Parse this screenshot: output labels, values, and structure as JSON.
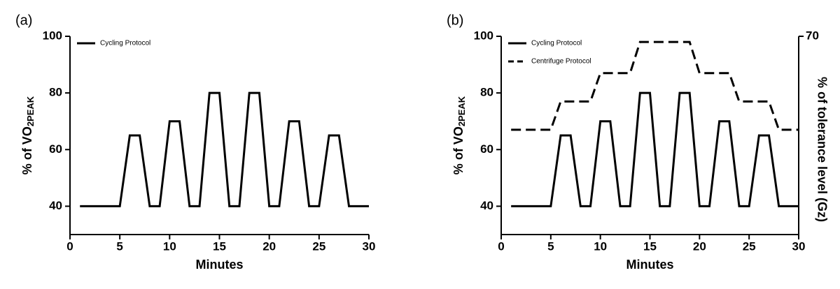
{
  "chart_data": [
    {
      "type": "line",
      "panel_label": "(a)",
      "xlabel": "Minutes",
      "ylabel": "% of VO",
      "ylabel_subscript": "2PEAK",
      "xlim": [
        0,
        30
      ],
      "xticks": [
        0,
        5,
        10,
        15,
        20,
        25,
        30
      ],
      "ylim": [
        30,
        100
      ],
      "yticks": [
        40,
        60,
        80,
        100
      ],
      "legend": "upper-left",
      "series": [
        {
          "name": "Cycling Protocol",
          "color": "#000000",
          "dashed": false,
          "x": [
            1,
            5,
            6,
            7,
            8,
            9,
            10,
            11,
            12,
            13,
            14,
            15,
            16,
            17,
            18,
            19,
            20,
            21,
            22,
            23,
            24,
            25,
            26,
            27,
            28,
            30
          ],
          "values": [
            40,
            40,
            65,
            65,
            40,
            40,
            70,
            70,
            40,
            40,
            80,
            80,
            40,
            40,
            80,
            80,
            40,
            40,
            70,
            70,
            40,
            40,
            65,
            65,
            40,
            40
          ]
        }
      ]
    },
    {
      "type": "line",
      "panel_label": "(b)",
      "xlabel": "Minutes",
      "ylabel": "% of VO",
      "ylabel_subscript": "2PEAK",
      "y2label": "% of tolerance level (Gz)",
      "xlim": [
        0,
        30
      ],
      "xticks": [
        0,
        5,
        10,
        15,
        20,
        25,
        30
      ],
      "ylim": [
        30,
        100
      ],
      "yticks": [
        40,
        60,
        80,
        100
      ],
      "y2lim": [
        0,
        70
      ],
      "y2ticks": [
        70
      ],
      "legend": "upper-left",
      "series": [
        {
          "name": "Cycling Protocol",
          "color": "#000000",
          "dashed": false,
          "x": [
            1,
            5,
            6,
            7,
            8,
            9,
            10,
            11,
            12,
            13,
            14,
            15,
            16,
            17,
            18,
            19,
            20,
            21,
            22,
            23,
            24,
            25,
            26,
            27,
            28,
            30
          ],
          "values": [
            40,
            40,
            65,
            65,
            40,
            40,
            70,
            70,
            40,
            40,
            80,
            80,
            40,
            40,
            80,
            80,
            40,
            40,
            70,
            70,
            40,
            40,
            65,
            65,
            40,
            40
          ]
        },
        {
          "name": "Centrifuge Protocol",
          "color": "#000000",
          "dashed": true,
          "axis": "y2",
          "x": [
            1,
            5,
            6,
            9,
            10,
            13,
            14,
            19,
            20,
            23,
            24,
            27,
            28,
            30
          ],
          "values": [
            37,
            37,
            47,
            47,
            57,
            57,
            68,
            68,
            57,
            57,
            47,
            47,
            37,
            37
          ]
        }
      ]
    }
  ]
}
